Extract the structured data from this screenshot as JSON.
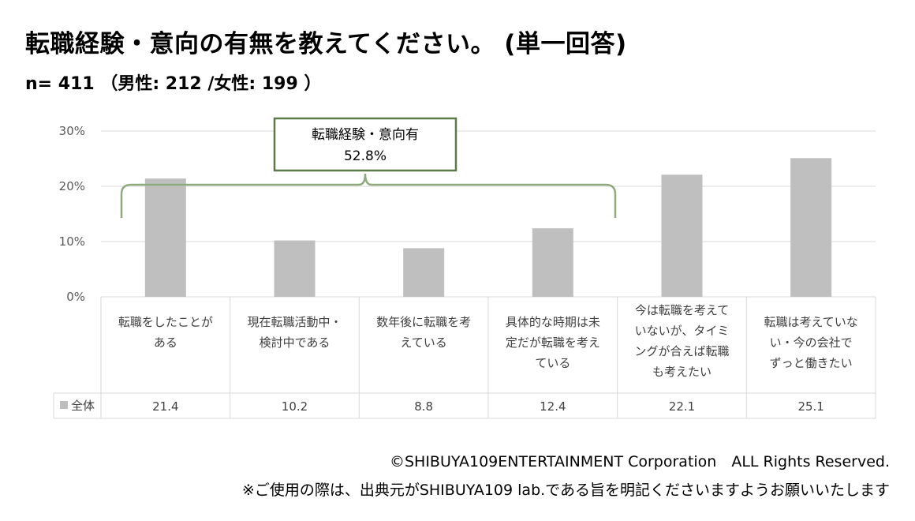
{
  "title": "転職経験・意向の有無を教えてください。 (単一回答)",
  "subtitle": "n= 411 （男性: 212 /女性: 199 ）",
  "footer": {
    "copyright": "©SHIBUYA109ENTERTAINMENT Corporation　ALL Rights Reserved.",
    "note": "※ご使用の際は、出典元がSHIBUYA109 lab.である旨を明記くださいますようお願いいたします"
  },
  "chart_data": {
    "type": "bar",
    "categories": [
      [
        "転職をしたことが",
        "ある"
      ],
      [
        "現在転職活動中・",
        "検討中である"
      ],
      [
        "数年後に転職を考",
        "えている"
      ],
      [
        "具体的な時期は未",
        "定だが転職を考え",
        "ている"
      ],
      [
        "今は転職を考えて",
        "いないが、タイミ",
        "ングが合えば転職",
        "も考えたい"
      ],
      [
        "転職は考えていな",
        "い・今の会社で",
        "ずっと働きたい"
      ]
    ],
    "series": [
      {
        "name": "全体",
        "values": [
          21.4,
          10.2,
          8.8,
          12.4,
          22.1,
          25.1
        ],
        "labels": [
          "21.4",
          "10.2",
          "8.8",
          "12.4",
          "22.1",
          "25.1"
        ],
        "color": "#bfbfbf"
      }
    ],
    "yticks": [
      "0%",
      "10%",
      "20%",
      "30%"
    ],
    "ylim": [
      0,
      30
    ],
    "grid": true,
    "annotation": {
      "lines": [
        "転職経験・意向有",
        "52.8%"
      ],
      "spans_categories": [
        0,
        3
      ],
      "border_color": "#5a7a4a",
      "bracket_color": "#8faa7d"
    }
  }
}
